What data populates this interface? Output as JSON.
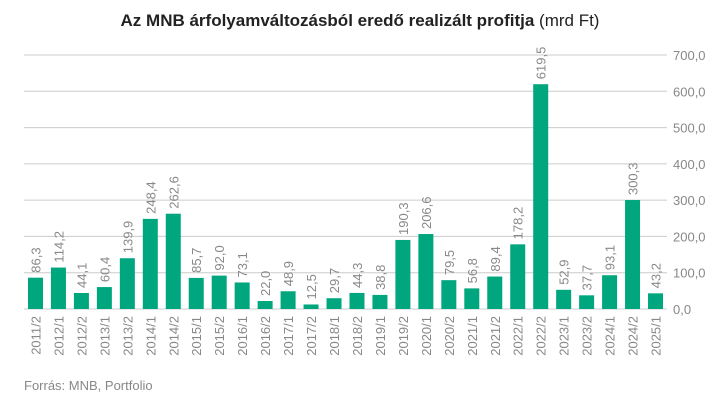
{
  "chart_data": {
    "type": "bar",
    "title": "Az MNB árfolyamváltozásból eredő realizált profitja",
    "title_unit": "(mrd Ft)",
    "source": "Forrás: MNB, Portfolio",
    "categories": [
      "2011/2",
      "2012/1",
      "2012/2",
      "2013/1",
      "2013/2",
      "2014/1",
      "2014/2",
      "2015/1",
      "2015/2",
      "2016/1",
      "2016/2",
      "2017/1",
      "2017/2",
      "2018/1",
      "2018/2",
      "2019/1",
      "2019/2",
      "2020/1",
      "2020/2",
      "2021/1",
      "2021/2",
      "2022/1",
      "2022/2",
      "2023/1",
      "2023/2",
      "2024/1",
      "2024/2",
      "2025/1"
    ],
    "values": [
      86.3,
      114.2,
      44.1,
      60.4,
      139.9,
      248.4,
      262.6,
      85.7,
      92.0,
      73.1,
      22.0,
      48.9,
      12.5,
      29.7,
      44.3,
      38.8,
      190.3,
      206.6,
      79.5,
      56.8,
      89.4,
      178.2,
      619.5,
      52.9,
      37.7,
      93.1,
      300.3,
      43.2
    ],
    "value_labels": [
      "86,3",
      "114,2",
      "44,1",
      "60,4",
      "139,9",
      "248,4",
      "262,6",
      "85,7",
      "92,0",
      "73,1",
      "22,0",
      "48,9",
      "12,5",
      "29,7",
      "44,3",
      "38,8",
      "190,3",
      "206,6",
      "79,5",
      "56,8",
      "89,4",
      "178,2",
      "619,5",
      "52,9",
      "37,7",
      "93,1",
      "300,3",
      "43,2"
    ],
    "yticks": [
      0,
      100,
      200,
      300,
      400,
      500,
      600,
      700
    ],
    "ytick_labels": [
      "0,0",
      "100,0",
      "200,0",
      "300,0",
      "400,0",
      "500,0",
      "600,0",
      "700,0"
    ],
    "ylim": [
      0,
      700
    ],
    "yaxis_side": "right",
    "grid": true,
    "bar_color": "#00a67e",
    "grid_color": "#cccccc"
  }
}
